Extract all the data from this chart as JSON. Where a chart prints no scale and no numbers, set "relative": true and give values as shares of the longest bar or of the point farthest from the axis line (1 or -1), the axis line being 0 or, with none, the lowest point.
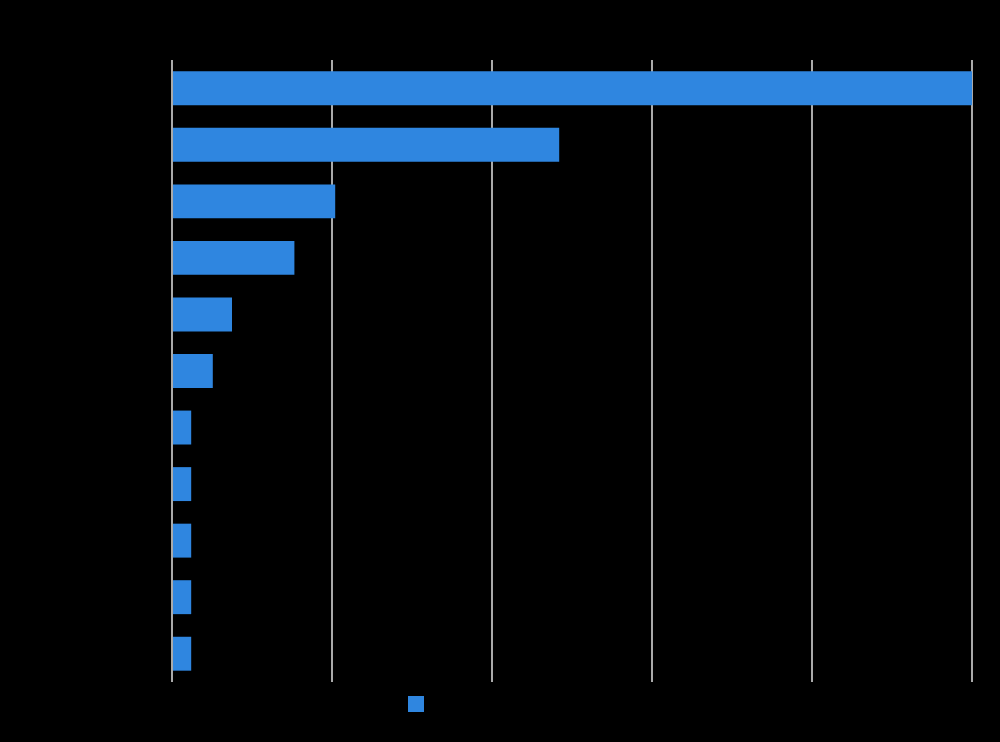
{
  "chart_data": {
    "type": "bar",
    "orientation": "horizontal",
    "relative": true,
    "grid": "x",
    "categories": [
      null,
      null,
      null,
      null,
      null,
      null,
      null,
      null,
      null,
      null,
      null
    ],
    "series": [
      {
        "color": "#2f86e0",
        "values": [
          1,
          0.484,
          0.204,
          0.153,
          0.075,
          0.051,
          0.024,
          0.024,
          0.024,
          0.024,
          0.024
        ]
      }
    ]
  }
}
